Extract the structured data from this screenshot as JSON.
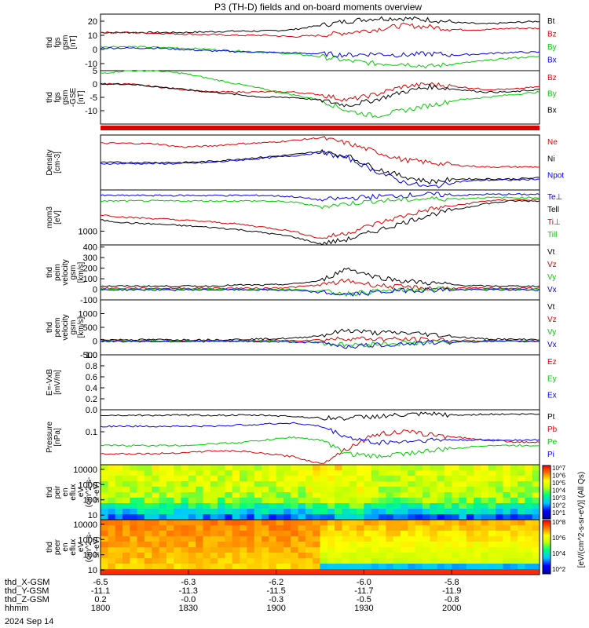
{
  "title": "P3 (TH-D) fields and on-board moments overview",
  "date_label": "2024 Sep 14",
  "colors": {
    "black": "#000000",
    "red": "#dd0000",
    "green": "#00cc00",
    "blue": "#0000ee"
  },
  "chart_data": [
    {
      "type": "line",
      "ylabel": [
        "thd",
        "fgs",
        "gsm",
        "[nT]"
      ],
      "ylim": [
        -15,
        25
      ],
      "ticks": [
        {
          "v": 20,
          "label": "20"
        },
        {
          "v": 10,
          "label": "10"
        },
        {
          "v": 0,
          "label": "0"
        },
        {
          "v": -10,
          "label": "-10"
        }
      ],
      "series": [
        {
          "name": "Bt",
          "color": "black",
          "values": [
            12,
            12,
            12,
            12,
            12.5,
            13,
            13,
            14,
            17,
            20,
            22,
            22,
            21,
            19,
            18,
            19,
            20
          ]
        },
        {
          "name": "Bz",
          "color": "red",
          "values": [
            12,
            12,
            11.5,
            11,
            10.5,
            10,
            10,
            9,
            10,
            12,
            14,
            17,
            16,
            14,
            14,
            15,
            15
          ]
        },
        {
          "name": "By",
          "color": "green",
          "values": [
            2,
            2,
            1.5,
            1,
            0,
            -1,
            -2,
            -3,
            -5,
            -8,
            -10,
            -10,
            -12,
            -10,
            -8,
            -6,
            -5
          ]
        },
        {
          "name": "Bx",
          "color": "blue",
          "values": [
            1,
            1,
            1,
            0,
            -1,
            -1.5,
            -2,
            -2.5,
            -3,
            -4,
            -3,
            -4,
            -3,
            -4,
            -3,
            -2,
            -2
          ]
        }
      ]
    },
    {
      "type": "line",
      "ylabel": [
        "thd",
        "fgs",
        "gsm",
        "-GSE",
        "[nT]"
      ],
      "ylim": [
        -15,
        5
      ],
      "ticks": [
        {
          "v": 5,
          "label": "5"
        },
        {
          "v": 0,
          "label": "0"
        },
        {
          "v": -5,
          "label": "-5"
        },
        {
          "v": -10,
          "label": "-10"
        }
      ],
      "series": [
        {
          "name": "Bz",
          "color": "red",
          "values": [
            0,
            0,
            -1,
            -2,
            -3,
            -3,
            -3,
            -3,
            -4,
            -6,
            -4,
            -1,
            0,
            -1,
            -2,
            -2,
            -1
          ]
        },
        {
          "name": "By",
          "color": "green",
          "values": [
            4,
            5,
            5,
            4,
            2,
            0,
            -2,
            -4,
            -6,
            -10,
            -12,
            -10,
            -8,
            -6,
            -5,
            -4,
            -3
          ]
        },
        {
          "name": "Bx",
          "color": "black",
          "values": [
            0,
            0,
            -1,
            -2,
            -3,
            -4,
            -5,
            -5,
            -6,
            -8,
            -6,
            -3,
            -1,
            -2,
            -3,
            -3,
            -2
          ]
        }
      ]
    },
    {
      "type": "line",
      "ylabel": [
        "Density",
        "[cm-3]"
      ],
      "ylim": [
        0,
        1
      ],
      "ticks": [],
      "series": [
        {
          "name": "Ne",
          "color": "red",
          "values": [
            0.85,
            0.85,
            0.84,
            0.78,
            0.8,
            0.84,
            0.86,
            0.9,
            0.95,
            0.85,
            0.7,
            0.55,
            0.5,
            0.45,
            0.42,
            0.42,
            0.42
          ]
        },
        {
          "name": "Ni",
          "color": "black",
          "values": [
            0.5,
            0.5,
            0.5,
            0.5,
            0.52,
            0.56,
            0.6,
            0.64,
            0.7,
            0.62,
            0.4,
            0.25,
            0.15,
            0.2,
            0.2,
            0.2,
            0.22
          ]
        },
        {
          "name": "Npot",
          "color": "blue",
          "values": [
            0.48,
            0.48,
            0.48,
            0.48,
            0.5,
            0.54,
            0.58,
            0.62,
            0.68,
            0.58,
            0.35,
            0.15,
            0.05,
            0.15,
            0.18,
            0.18,
            0.2
          ]
        }
      ]
    },
    {
      "type": "line",
      "ylabel": [
        "mom3",
        "[eV]"
      ],
      "ylim": [
        0,
        1
      ],
      "ticks": [
        {
          "v": 0.25,
          "label": "1000"
        }
      ],
      "series": [
        {
          "name": "Te⊥",
          "color": "blue",
          "values": [
            0.9,
            0.9,
            0.9,
            0.9,
            0.9,
            0.9,
            0.9,
            0.88,
            0.82,
            0.85,
            0.88,
            0.9,
            0.92,
            0.9,
            0.92,
            0.92,
            0.92
          ]
        },
        {
          "name": "Tell",
          "color": "black",
          "values": [
            0.45,
            0.4,
            0.38,
            0.35,
            0.32,
            0.28,
            0.22,
            0.15,
            0.02,
            0.1,
            0.25,
            0.4,
            0.55,
            0.65,
            0.75,
            0.8,
            0.8
          ]
        },
        {
          "name": "Ti⊥",
          "color": "red",
          "values": [
            0.55,
            0.5,
            0.48,
            0.45,
            0.42,
            0.38,
            0.32,
            0.25,
            0.12,
            0.22,
            0.38,
            0.52,
            0.65,
            0.72,
            0.8,
            0.82,
            0.82
          ]
        },
        {
          "name": "Till",
          "color": "green",
          "values": [
            0.8,
            0.8,
            0.8,
            0.8,
            0.8,
            0.8,
            0.8,
            0.78,
            0.7,
            0.75,
            0.8,
            0.82,
            0.84,
            0.84,
            0.86,
            0.86,
            0.86
          ]
        }
      ]
    },
    {
      "type": "line",
      "ylabel": [
        "thd",
        "peim",
        "velocity",
        "gsm",
        "[km/s]"
      ],
      "ylim": [
        -100,
        420
      ],
      "ticks": [
        {
          "v": 400,
          "label": "400"
        },
        {
          "v": 300,
          "label": "300"
        },
        {
          "v": 200,
          "label": "200"
        },
        {
          "v": 100,
          "label": "100"
        },
        {
          "v": 0,
          "label": "0"
        },
        {
          "v": -100,
          "label": "-100"
        }
      ],
      "series": [
        {
          "name": "Vt",
          "color": "black",
          "values": [
            30,
            30,
            30,
            30,
            30,
            40,
            40,
            50,
            80,
            200,
            120,
            80,
            60,
            40,
            30,
            30,
            30
          ]
        },
        {
          "name": "Vz",
          "color": "red",
          "values": [
            10,
            10,
            10,
            10,
            10,
            10,
            10,
            20,
            40,
            80,
            40,
            20,
            10,
            10,
            10,
            10,
            10
          ]
        },
        {
          "name": "Vy",
          "color": "green",
          "values": [
            0,
            0,
            0,
            0,
            0,
            0,
            0,
            0,
            -20,
            -40,
            -20,
            -10,
            0,
            0,
            0,
            0,
            0
          ]
        },
        {
          "name": "Vx",
          "color": "blue",
          "values": [
            -5,
            -5,
            -5,
            -5,
            -5,
            -5,
            -5,
            -10,
            -30,
            -50,
            -30,
            -10,
            -5,
            -5,
            -5,
            -5,
            -5
          ]
        }
      ]
    },
    {
      "type": "line",
      "ylabel": [
        "thd",
        "peem",
        "velocity",
        "gsm",
        "[km/s]"
      ],
      "ylim": [
        -500,
        1500
      ],
      "ticks": [
        {
          "v": 1000,
          "label": "1000"
        },
        {
          "v": 500,
          "label": "500"
        },
        {
          "v": 0,
          "label": "0"
        },
        {
          "v": -500,
          "label": "-500"
        }
      ],
      "series": [
        {
          "name": "Vt",
          "color": "black",
          "values": [
            50,
            50,
            50,
            50,
            50,
            60,
            80,
            100,
            200,
            400,
            300,
            300,
            250,
            150,
            80,
            60,
            60
          ]
        },
        {
          "name": "Vz",
          "color": "red",
          "values": [
            10,
            10,
            10,
            10,
            10,
            10,
            20,
            20,
            50,
            100,
            80,
            60,
            50,
            20,
            10,
            10,
            10
          ]
        },
        {
          "name": "Vy",
          "color": "green",
          "values": [
            0,
            0,
            0,
            0,
            0,
            0,
            0,
            -20,
            -50,
            -150,
            -100,
            -80,
            -50,
            -20,
            0,
            0,
            0
          ]
        },
        {
          "name": "Vx",
          "color": "blue",
          "values": [
            -10,
            -10,
            -10,
            -10,
            -10,
            -10,
            -20,
            -30,
            -60,
            -200,
            -150,
            -100,
            -60,
            -30,
            -10,
            -10,
            -10
          ]
        }
      ]
    },
    {
      "type": "line",
      "ylabel": [
        "E=-VxB",
        "[mV/m]"
      ],
      "ylim": [
        0,
        1
      ],
      "ticks": [
        {
          "v": 1,
          "label": "1.0"
        },
        {
          "v": 0.8,
          "label": "0.8"
        },
        {
          "v": 0.6,
          "label": "0.6"
        },
        {
          "v": 0.4,
          "label": "0.4"
        },
        {
          "v": 0.2,
          "label": "0.2"
        },
        {
          "v": 0,
          "label": "0.0"
        }
      ],
      "series": [
        {
          "name": "Ez",
          "color": "red",
          "values": []
        },
        {
          "name": "Ey",
          "color": "green",
          "values": []
        },
        {
          "name": "Ex",
          "color": "blue",
          "values": []
        }
      ]
    },
    {
      "type": "line",
      "ylabel": [
        "Pressure",
        "[nPa]"
      ],
      "ylim": [
        0,
        1
      ],
      "ticks": [
        {
          "v": 0.6,
          "label": "0.1"
        }
      ],
      "series": [
        {
          "name": "Pt",
          "color": "black",
          "values": [
            0.9,
            0.9,
            0.9,
            0.9,
            0.9,
            0.9,
            0.9,
            0.88,
            0.85,
            0.85,
            0.88,
            0.9,
            0.92,
            0.9,
            0.92,
            0.92,
            0.92
          ]
        },
        {
          "name": "Pb",
          "color": "red",
          "values": [
            0.2,
            0.2,
            0.2,
            0.22,
            0.25,
            0.25,
            0.2,
            0.15,
            0.02,
            0.3,
            0.55,
            0.6,
            0.55,
            0.5,
            0.45,
            0.42,
            0.4
          ]
        },
        {
          "name": "Pe",
          "color": "green",
          "values": [
            0.35,
            0.35,
            0.35,
            0.35,
            0.38,
            0.4,
            0.45,
            0.5,
            0.45,
            0.2,
            0.15,
            0.2,
            0.25,
            0.3,
            0.35,
            0.35,
            0.35
          ]
        },
        {
          "name": "Pi",
          "color": "blue",
          "values": [
            0.7,
            0.7,
            0.7,
            0.7,
            0.7,
            0.72,
            0.74,
            0.76,
            0.7,
            0.5,
            0.4,
            0.42,
            0.45,
            0.45,
            0.45,
            0.45,
            0.45
          ]
        }
      ]
    },
    {
      "type": "heatmap",
      "ylabel": [
        "thd",
        "peir",
        "en",
        "eflux",
        "eV",
        "(cm^2-s-",
        "sr-eV)"
      ],
      "ticks": [
        {
          "v": 10000,
          "label": "10000"
        },
        {
          "v": 1000,
          "label": "1000"
        },
        {
          "v": 100,
          "label": "100"
        },
        {
          "v": 10,
          "label": "10"
        }
      ],
      "ylim": [
        5,
        20000
      ]
    },
    {
      "type": "heatmap",
      "ylabel": [
        "thd",
        "peer",
        "en",
        "eflux",
        "eV",
        "(cm^2-s-",
        "sr-eV)"
      ],
      "ticks": [
        {
          "v": 10000,
          "label": "10000"
        },
        {
          "v": 1000,
          "label": "1000"
        },
        {
          "v": 100,
          "label": "100"
        },
        {
          "v": 10,
          "label": "10"
        }
      ],
      "ylim": [
        5,
        20000
      ]
    }
  ],
  "colorbar": {
    "label": "[eV/(cm^2-s-sr-eV)] (All Qs)",
    "upper_ticks": [
      "10^7",
      "10^6",
      "10^5",
      "10^4",
      "10^3",
      "10^2",
      "10^1"
    ],
    "lower_ticks": [
      "10^8",
      "10^6",
      "10^4",
      "10^2"
    ]
  },
  "xaxis": {
    "row_labels": [
      "thd_X-GSM",
      "thd_Y-GSM",
      "thd_Z-GSM",
      "hhmm"
    ],
    "columns": [
      {
        "x": 0,
        "values": [
          "-6.5",
          "-11.1",
          "0.2",
          "1800"
        ]
      },
      {
        "x": 0.2,
        "values": [
          "-6.3",
          "-11.3",
          "-0.0",
          "1830"
        ]
      },
      {
        "x": 0.4,
        "values": [
          "-6.2",
          "-11.5",
          "-0.3",
          "1900"
        ]
      },
      {
        "x": 0.6,
        "values": [
          "-6.0",
          "-11.7",
          "-0.5",
          "1930"
        ]
      },
      {
        "x": 0.8,
        "values": [
          "-5.8",
          "-11.9",
          "-0.8",
          "2000"
        ]
      }
    ]
  }
}
